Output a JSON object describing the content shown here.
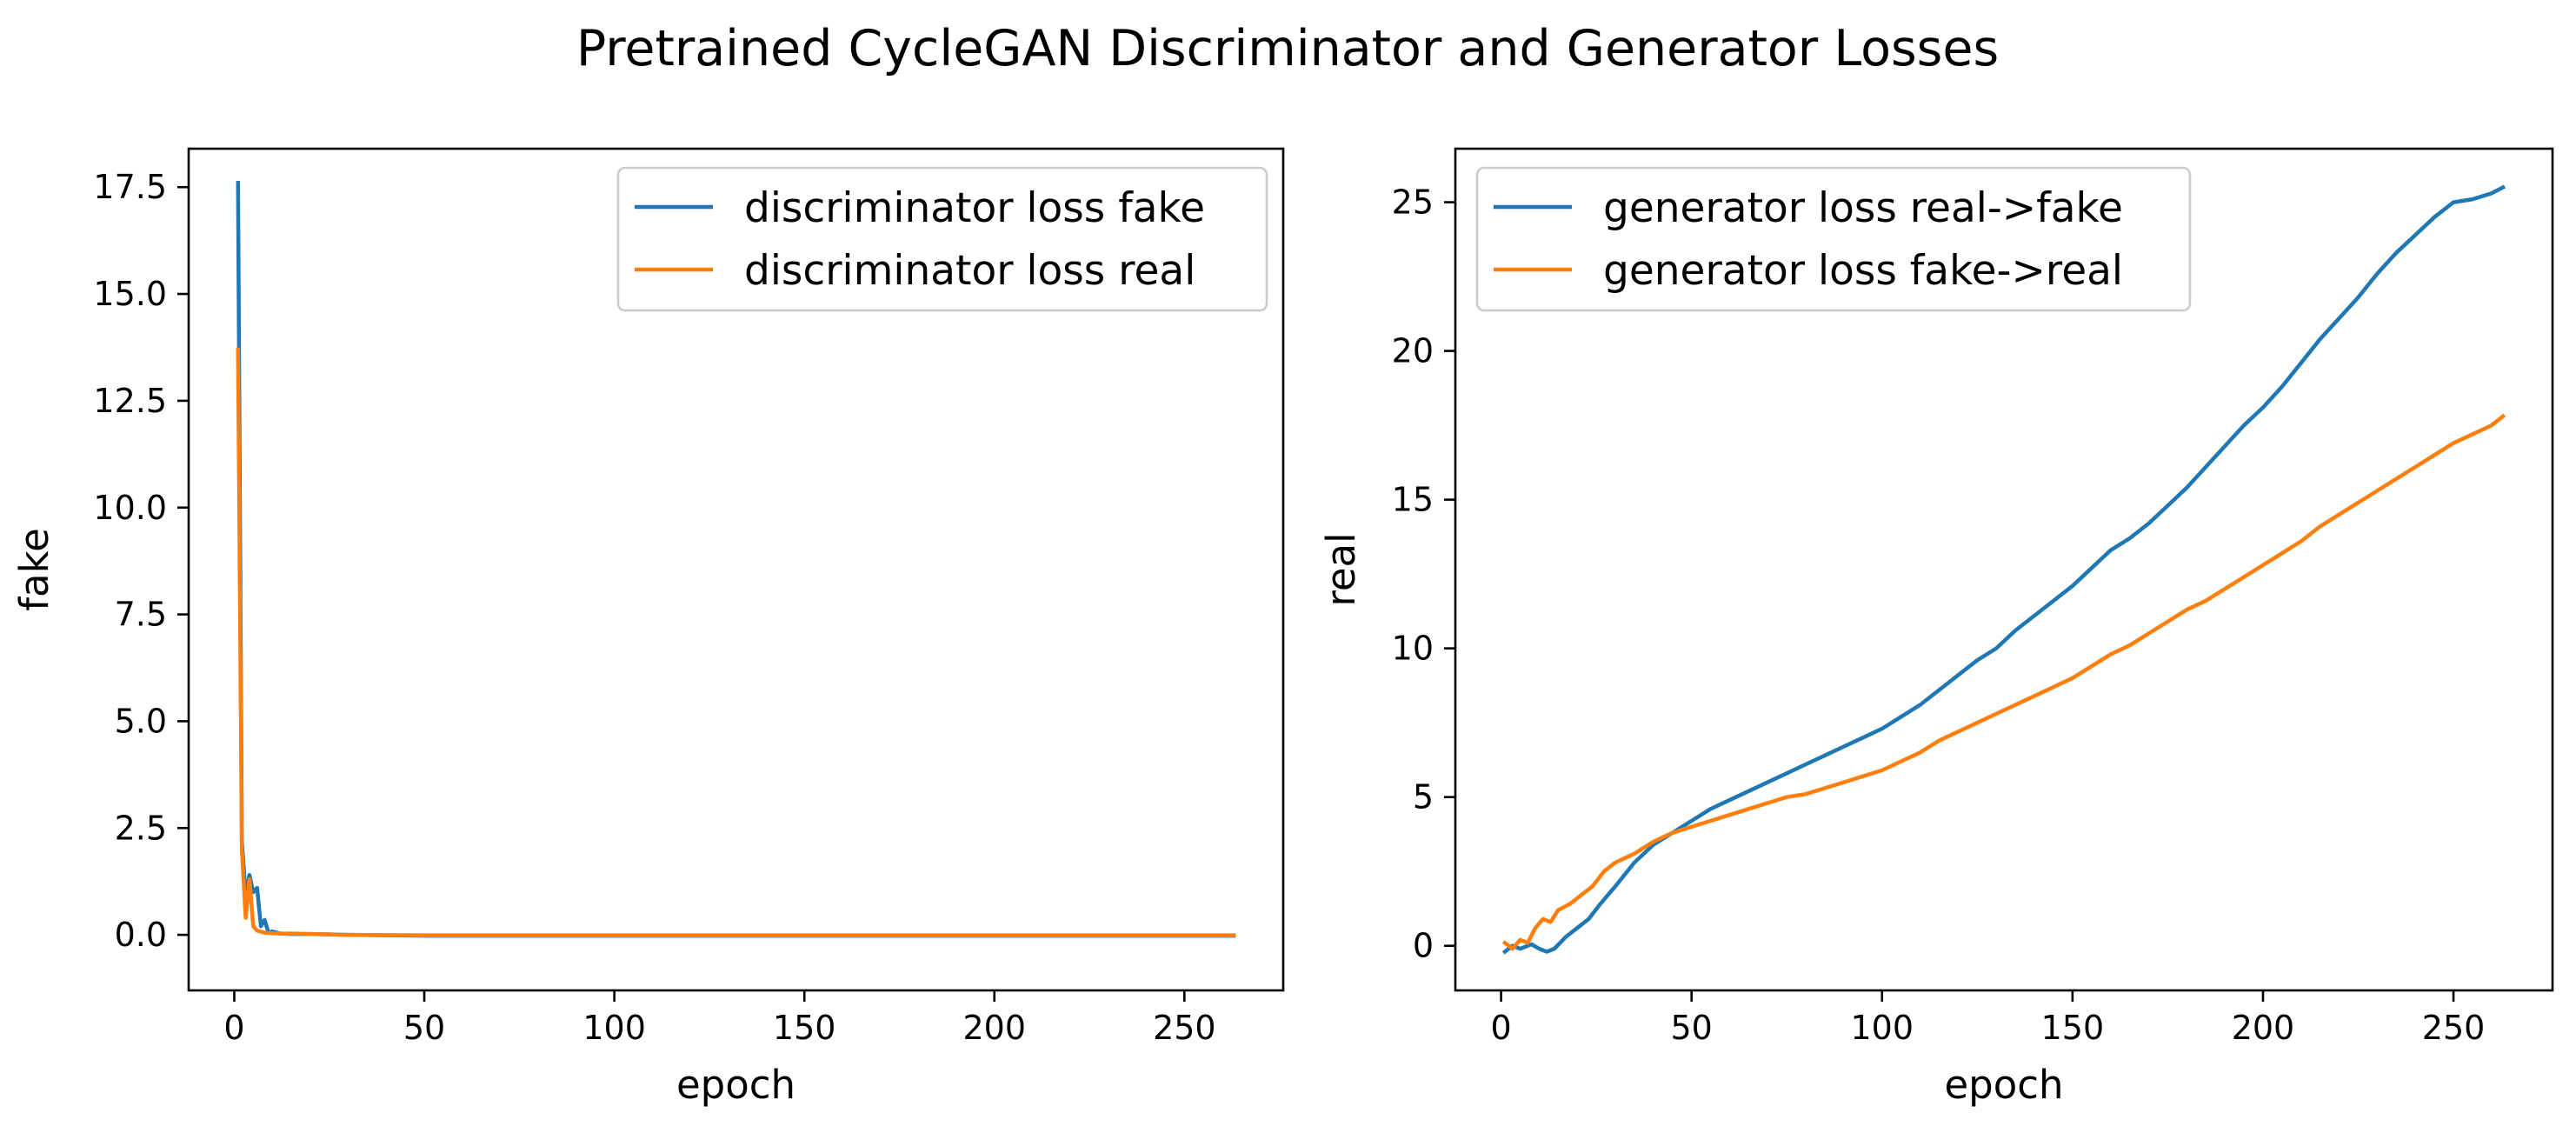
{
  "suptitle": "Pretrained CycleGAN Discriminator and Generator Losses",
  "chart_data": [
    {
      "type": "line",
      "xlabel": "epoch",
      "ylabel": "fake",
      "xlim": [
        -12,
        276
      ],
      "ylim": [
        -1.3,
        18.4
      ],
      "xticks": [
        0,
        50,
        100,
        150,
        200,
        250
      ],
      "yticks": [
        0.0,
        2.5,
        5.0,
        7.5,
        10.0,
        12.5,
        15.0,
        17.5
      ],
      "ytick_labels": [
        "0.0",
        "2.5",
        "5.0",
        "7.5",
        "10.0",
        "12.5",
        "15.0",
        "17.5"
      ],
      "legend_position": "upper right",
      "series": [
        {
          "name": "discriminator loss fake",
          "color": "#1f77b4",
          "points": [
            [
              1,
              17.6
            ],
            [
              2,
              2.2
            ],
            [
              3,
              0.9
            ],
            [
              4,
              1.4
            ],
            [
              5,
              1.0
            ],
            [
              6,
              1.1
            ],
            [
              7,
              0.2
            ],
            [
              8,
              0.35
            ],
            [
              9,
              0.05
            ],
            [
              10,
              0.08
            ],
            [
              12,
              0.03
            ],
            [
              15,
              0.02
            ],
            [
              20,
              0.02
            ],
            [
              30,
              0.0
            ],
            [
              50,
              -0.02
            ],
            [
              100,
              -0.02
            ],
            [
              150,
              -0.02
            ],
            [
              200,
              -0.02
            ],
            [
              263,
              -0.02
            ]
          ]
        },
        {
          "name": "discriminator loss real",
          "color": "#ff7f0e",
          "points": [
            [
              1,
              13.7
            ],
            [
              2,
              2.0
            ],
            [
              3,
              0.4
            ],
            [
              4,
              1.3
            ],
            [
              5,
              0.2
            ],
            [
              6,
              0.1
            ],
            [
              8,
              0.05
            ],
            [
              10,
              0.04
            ],
            [
              12,
              0.03
            ],
            [
              15,
              0.03
            ],
            [
              20,
              0.02
            ],
            [
              30,
              0.0
            ],
            [
              50,
              -0.01
            ],
            [
              100,
              -0.01
            ],
            [
              150,
              -0.01
            ],
            [
              200,
              -0.01
            ],
            [
              263,
              -0.01
            ]
          ]
        }
      ]
    },
    {
      "type": "line",
      "xlabel": "epoch",
      "ylabel": "real",
      "xlim": [
        -12,
        276
      ],
      "ylim": [
        -1.5,
        26.8
      ],
      "xticks": [
        0,
        50,
        100,
        150,
        200,
        250
      ],
      "yticks": [
        0,
        5,
        10,
        15,
        20,
        25
      ],
      "ytick_labels": [
        "0",
        "5",
        "10",
        "15",
        "20",
        "25"
      ],
      "legend_position": "upper left",
      "series": [
        {
          "name": "generator loss real->fake",
          "color": "#1f77b4",
          "points": [
            [
              1,
              -0.2
            ],
            [
              3,
              0.0
            ],
            [
              5,
              -0.1
            ],
            [
              8,
              0.05
            ],
            [
              10,
              -0.1
            ],
            [
              12,
              -0.2
            ],
            [
              14,
              -0.1
            ],
            [
              17,
              0.3
            ],
            [
              20,
              0.6
            ],
            [
              23,
              0.9
            ],
            [
              26,
              1.4
            ],
            [
              30,
              2.0
            ],
            [
              35,
              2.8
            ],
            [
              40,
              3.4
            ],
            [
              45,
              3.8
            ],
            [
              50,
              4.2
            ],
            [
              55,
              4.6
            ],
            [
              60,
              4.9
            ],
            [
              65,
              5.2
            ],
            [
              70,
              5.5
            ],
            [
              75,
              5.8
            ],
            [
              80,
              6.1
            ],
            [
              85,
              6.4
            ],
            [
              90,
              6.7
            ],
            [
              95,
              7.0
            ],
            [
              100,
              7.3
            ],
            [
              105,
              7.7
            ],
            [
              110,
              8.1
            ],
            [
              115,
              8.6
            ],
            [
              120,
              9.1
            ],
            [
              125,
              9.6
            ],
            [
              130,
              10.0
            ],
            [
              135,
              10.6
            ],
            [
              140,
              11.1
            ],
            [
              145,
              11.6
            ],
            [
              150,
              12.1
            ],
            [
              155,
              12.7
            ],
            [
              160,
              13.3
            ],
            [
              165,
              13.7
            ],
            [
              170,
              14.2
            ],
            [
              175,
              14.8
            ],
            [
              180,
              15.4
            ],
            [
              185,
              16.1
            ],
            [
              190,
              16.8
            ],
            [
              195,
              17.5
            ],
            [
              200,
              18.1
            ],
            [
              205,
              18.8
            ],
            [
              210,
              19.6
            ],
            [
              215,
              20.4
            ],
            [
              220,
              21.1
            ],
            [
              225,
              21.8
            ],
            [
              230,
              22.6
            ],
            [
              235,
              23.3
            ],
            [
              240,
              23.9
            ],
            [
              245,
              24.5
            ],
            [
              250,
              25.0
            ],
            [
              255,
              25.1
            ],
            [
              260,
              25.3
            ],
            [
              263,
              25.5
            ]
          ]
        },
        {
          "name": "generator loss fake->real",
          "color": "#ff7f0e",
          "points": [
            [
              1,
              0.1
            ],
            [
              3,
              -0.1
            ],
            [
              5,
              0.2
            ],
            [
              7,
              0.1
            ],
            [
              9,
              0.6
            ],
            [
              11,
              0.9
            ],
            [
              13,
              0.8
            ],
            [
              15,
              1.2
            ],
            [
              18,
              1.4
            ],
            [
              21,
              1.7
            ],
            [
              24,
              2.0
            ],
            [
              27,
              2.5
            ],
            [
              30,
              2.8
            ],
            [
              35,
              3.1
            ],
            [
              40,
              3.5
            ],
            [
              45,
              3.8
            ],
            [
              50,
              4.0
            ],
            [
              55,
              4.2
            ],
            [
              60,
              4.4
            ],
            [
              65,
              4.6
            ],
            [
              70,
              4.8
            ],
            [
              75,
              5.0
            ],
            [
              80,
              5.1
            ],
            [
              85,
              5.3
            ],
            [
              90,
              5.5
            ],
            [
              95,
              5.7
            ],
            [
              100,
              5.9
            ],
            [
              105,
              6.2
            ],
            [
              110,
              6.5
            ],
            [
              115,
              6.9
            ],
            [
              120,
              7.2
            ],
            [
              125,
              7.5
            ],
            [
              130,
              7.8
            ],
            [
              135,
              8.1
            ],
            [
              140,
              8.4
            ],
            [
              145,
              8.7
            ],
            [
              150,
              9.0
            ],
            [
              155,
              9.4
            ],
            [
              160,
              9.8
            ],
            [
              165,
              10.1
            ],
            [
              170,
              10.5
            ],
            [
              175,
              10.9
            ],
            [
              180,
              11.3
            ],
            [
              185,
              11.6
            ],
            [
              190,
              12.0
            ],
            [
              195,
              12.4
            ],
            [
              200,
              12.8
            ],
            [
              205,
              13.2
            ],
            [
              210,
              13.6
            ],
            [
              215,
              14.1
            ],
            [
              220,
              14.5
            ],
            [
              225,
              14.9
            ],
            [
              230,
              15.3
            ],
            [
              235,
              15.7
            ],
            [
              240,
              16.1
            ],
            [
              245,
              16.5
            ],
            [
              250,
              16.9
            ],
            [
              255,
              17.2
            ],
            [
              260,
              17.5
            ],
            [
              263,
              17.8
            ]
          ]
        }
      ]
    }
  ]
}
